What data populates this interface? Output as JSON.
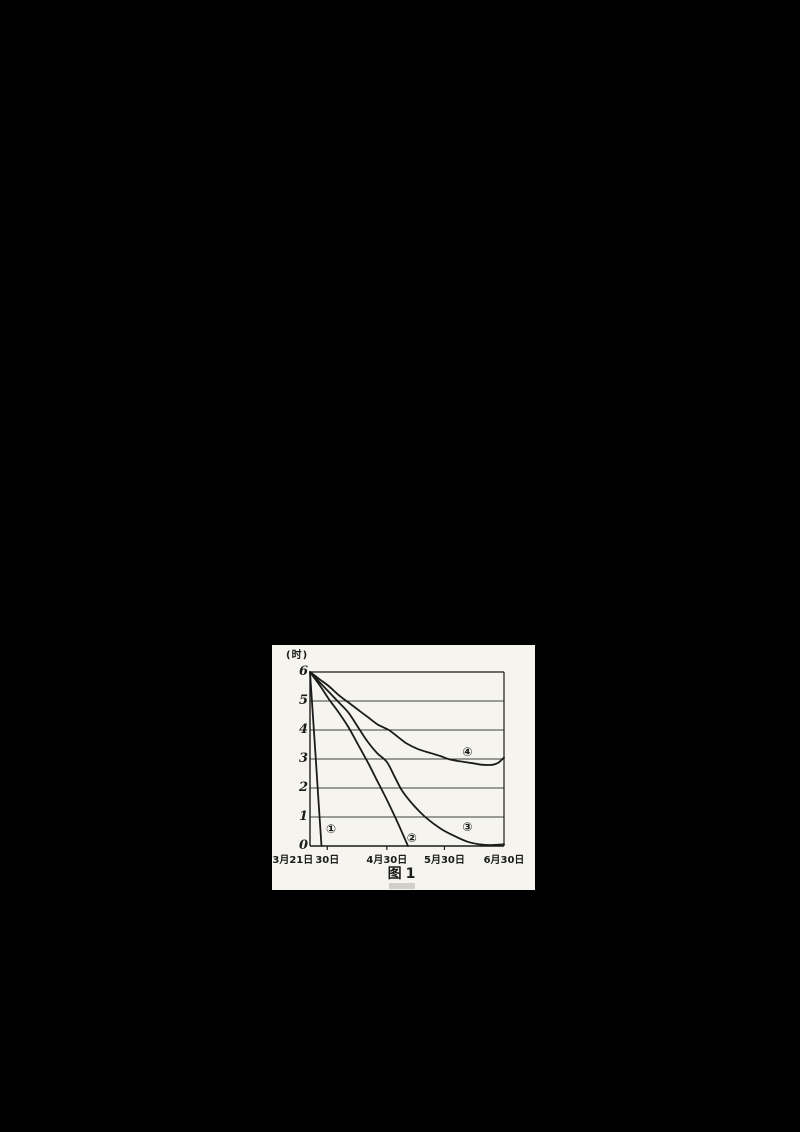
{
  "page": {
    "background": "#000000",
    "panel_background": "#f5f4ef",
    "ink_color": "#1b1b1b",
    "grid_color": "#3f3f3f"
  },
  "figure": {
    "y_axis_title": "(时)",
    "caption": "图1",
    "y_tick_labels": [
      "6",
      "5",
      "4",
      "3",
      "2",
      "1",
      "0"
    ],
    "x_tick_labels": [
      "3月21日",
      "30日",
      "4月30日",
      "5月30日",
      "6月30日"
    ],
    "curve_labels": [
      {
        "label": "①",
        "day": 11,
        "value": 0.58
      },
      {
        "label": "②",
        "day": 53,
        "value": 0.28
      },
      {
        "label": "③",
        "day": 82,
        "value": 0.65
      },
      {
        "label": "④",
        "day": 82,
        "value": 3.25
      }
    ]
  },
  "chart_data": {
    "type": "line",
    "title": "图1",
    "xlabel": "",
    "ylabel": "(时)",
    "ylim": [
      0,
      6
    ],
    "xlim_days": [
      0,
      101
    ],
    "grid": true,
    "y_ticks": [
      0,
      1,
      2,
      3,
      4,
      5,
      6
    ],
    "x_ticks": [
      {
        "day": 0,
        "label": "3月21日"
      },
      {
        "day": 9,
        "label": "30日"
      },
      {
        "day": 40,
        "label": "4月30日"
      },
      {
        "day": 70,
        "label": "5月30日"
      },
      {
        "day": 101,
        "label": "6月30日"
      }
    ],
    "series": [
      {
        "name": "①",
        "points": [
          [
            0,
            6
          ],
          [
            1.5,
            4.5
          ],
          [
            3,
            3
          ],
          [
            4.5,
            1.5
          ],
          [
            6,
            0
          ]
        ]
      },
      {
        "name": "②",
        "points": [
          [
            0,
            6
          ],
          [
            5,
            5.55
          ],
          [
            10,
            5.05
          ],
          [
            15,
            4.6
          ],
          [
            20,
            4.1
          ],
          [
            25,
            3.5
          ],
          [
            30,
            2.9
          ],
          [
            35,
            2.25
          ],
          [
            40,
            1.6
          ],
          [
            45,
            0.9
          ],
          [
            51,
            0
          ]
        ]
      },
      {
        "name": "③",
        "points": [
          [
            0,
            6
          ],
          [
            5,
            5.65
          ],
          [
            10,
            5.3
          ],
          [
            15,
            4.95
          ],
          [
            20,
            4.6
          ],
          [
            25,
            4.1
          ],
          [
            30,
            3.6
          ],
          [
            35,
            3.2
          ],
          [
            40,
            2.9
          ],
          [
            44,
            2.4
          ],
          [
            48,
            1.9
          ],
          [
            54,
            1.4
          ],
          [
            60,
            1.0
          ],
          [
            68,
            0.6
          ],
          [
            75,
            0.35
          ],
          [
            82,
            0.15
          ],
          [
            88,
            0.06
          ],
          [
            94,
            0.03
          ],
          [
            101,
            0.06
          ]
        ]
      },
      {
        "name": "④",
        "points": [
          [
            0,
            6
          ],
          [
            5,
            5.75
          ],
          [
            10,
            5.5
          ],
          [
            15,
            5.2
          ],
          [
            21,
            4.9
          ],
          [
            26,
            4.65
          ],
          [
            30,
            4.45
          ],
          [
            35,
            4.2
          ],
          [
            41,
            4.0
          ],
          [
            46,
            3.75
          ],
          [
            50,
            3.55
          ],
          [
            56,
            3.35
          ],
          [
            63,
            3.2
          ],
          [
            68,
            3.1
          ],
          [
            72,
            3.0
          ],
          [
            78,
            2.92
          ],
          [
            85,
            2.85
          ],
          [
            90,
            2.8
          ],
          [
            95,
            2.8
          ],
          [
            98,
            2.87
          ],
          [
            101,
            3.05
          ]
        ]
      }
    ]
  }
}
